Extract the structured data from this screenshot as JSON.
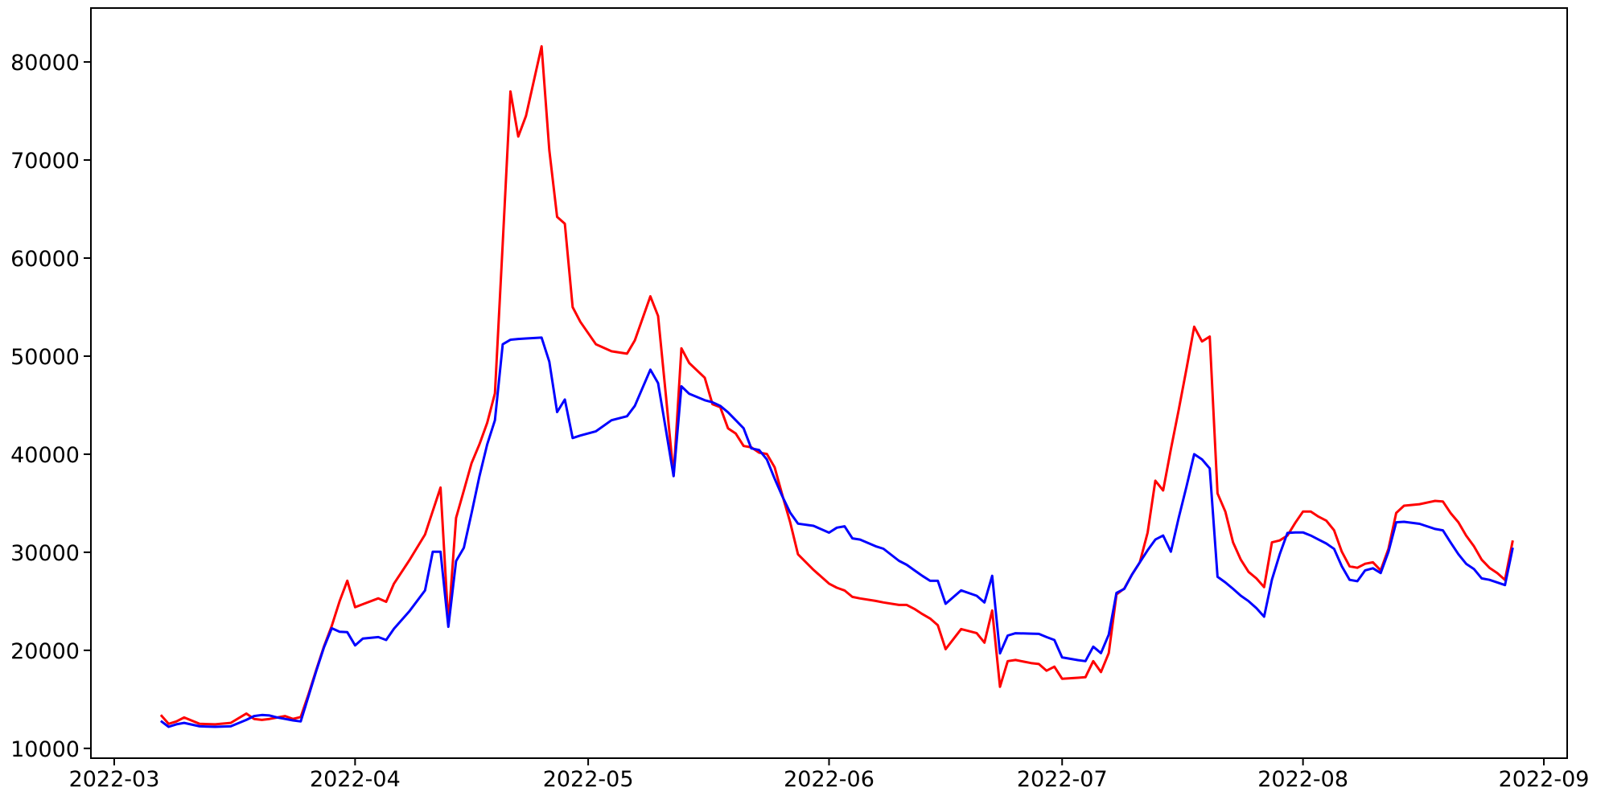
{
  "chart_data": {
    "type": "line",
    "title": "",
    "xlabel": "",
    "ylabel": "",
    "grid": false,
    "legend": null,
    "background_color": "#ffffff",
    "axis_color": "#000000",
    "xlim_days_from_2022_03_01": [
      -3,
      187
    ],
    "ylim": [
      9000,
      85500
    ],
    "x_ticks": [
      {
        "label": "2022-03",
        "date": "2022-03-01"
      },
      {
        "label": "2022-04",
        "date": "2022-04-01"
      },
      {
        "label": "2022-05",
        "date": "2022-05-01"
      },
      {
        "label": "2022-06",
        "date": "2022-06-01"
      },
      {
        "label": "2022-07",
        "date": "2022-07-01"
      },
      {
        "label": "2022-08",
        "date": "2022-08-01"
      },
      {
        "label": "2022-09",
        "date": "2022-09-01"
      }
    ],
    "y_ticks": [
      {
        "label": "10000",
        "value": 10000
      },
      {
        "label": "20000",
        "value": 20000
      },
      {
        "label": "30000",
        "value": 30000
      },
      {
        "label": "40000",
        "value": 40000
      },
      {
        "label": "50000",
        "value": 50000
      },
      {
        "label": "60000",
        "value": 60000
      },
      {
        "label": "70000",
        "value": 70000
      },
      {
        "label": "80000",
        "value": 80000
      }
    ],
    "x": [
      "2022-03-07",
      "2022-03-08",
      "2022-03-09",
      "2022-03-10",
      "2022-03-12",
      "2022-03-14",
      "2022-03-16",
      "2022-03-18",
      "2022-03-19",
      "2022-03-20",
      "2022-03-21",
      "2022-03-22",
      "2022-03-23",
      "2022-03-24",
      "2022-03-25",
      "2022-03-26",
      "2022-03-27",
      "2022-03-28",
      "2022-03-29",
      "2022-03-30",
      "2022-03-31",
      "2022-04-01",
      "2022-04-02",
      "2022-04-04",
      "2022-04-05",
      "2022-04-06",
      "2022-04-08",
      "2022-04-10",
      "2022-04-11",
      "2022-04-12",
      "2022-04-13",
      "2022-04-14",
      "2022-04-15",
      "2022-04-16",
      "2022-04-17",
      "2022-04-18",
      "2022-04-19",
      "2022-04-20",
      "2022-04-21",
      "2022-04-22",
      "2022-04-23",
      "2022-04-25",
      "2022-04-26",
      "2022-04-27",
      "2022-04-28",
      "2022-04-29",
      "2022-04-30",
      "2022-05-02",
      "2022-05-04",
      "2022-05-06",
      "2022-05-07",
      "2022-05-09",
      "2022-05-10",
      "2022-05-11",
      "2022-05-12",
      "2022-05-13",
      "2022-05-14",
      "2022-05-16",
      "2022-05-17",
      "2022-05-18",
      "2022-05-19",
      "2022-05-20",
      "2022-05-21",
      "2022-05-22",
      "2022-05-23",
      "2022-05-24",
      "2022-05-25",
      "2022-05-26",
      "2022-05-27",
      "2022-05-28",
      "2022-05-30",
      "2022-06-01",
      "2022-06-02",
      "2022-06-03",
      "2022-06-04",
      "2022-06-05",
      "2022-06-07",
      "2022-06-08",
      "2022-06-10",
      "2022-06-11",
      "2022-06-12",
      "2022-06-13",
      "2022-06-14",
      "2022-06-15",
      "2022-06-16",
      "2022-06-18",
      "2022-06-20",
      "2022-06-21",
      "2022-06-22",
      "2022-06-23",
      "2022-06-24",
      "2022-06-25",
      "2022-06-27",
      "2022-06-28",
      "2022-06-29",
      "2022-06-30",
      "2022-07-01",
      "2022-07-03",
      "2022-07-04",
      "2022-07-05",
      "2022-07-06",
      "2022-07-07",
      "2022-07-08",
      "2022-07-09",
      "2022-07-10",
      "2022-07-11",
      "2022-07-12",
      "2022-07-13",
      "2022-07-14",
      "2022-07-15",
      "2022-07-16",
      "2022-07-17",
      "2022-07-18",
      "2022-07-19",
      "2022-07-20",
      "2022-07-21",
      "2022-07-22",
      "2022-07-23",
      "2022-07-24",
      "2022-07-25",
      "2022-07-26",
      "2022-07-27",
      "2022-07-28",
      "2022-07-29",
      "2022-07-30",
      "2022-07-31",
      "2022-08-01",
      "2022-08-02",
      "2022-08-03",
      "2022-08-04",
      "2022-08-05",
      "2022-08-06",
      "2022-08-07",
      "2022-08-08",
      "2022-08-09",
      "2022-08-10",
      "2022-08-11",
      "2022-08-12",
      "2022-08-13",
      "2022-08-14",
      "2022-08-16",
      "2022-08-18",
      "2022-08-19",
      "2022-08-20",
      "2022-08-21",
      "2022-08-22",
      "2022-08-23",
      "2022-08-24",
      "2022-08-25",
      "2022-08-26",
      "2022-08-27",
      "2022-08-28"
    ],
    "series": [
      {
        "name": "red-series",
        "color": "#ff0000",
        "values": [
          13400,
          12500,
          12750,
          13150,
          12500,
          12450,
          12600,
          13550,
          13000,
          12900,
          13000,
          13150,
          13300,
          13000,
          13200,
          15500,
          18000,
          20400,
          22500,
          25000,
          27100,
          24400,
          24700,
          25300,
          24950,
          26800,
          29200,
          31800,
          34200,
          36600,
          22700,
          33500,
          36300,
          39100,
          41000,
          43200,
          46200,
          61500,
          77000,
          72400,
          74500,
          81600,
          71000,
          64200,
          63500,
          55000,
          53500,
          51200,
          50500,
          50250,
          51600,
          56100,
          54100,
          46000,
          37800,
          50800,
          49300,
          47800,
          45100,
          44790,
          42640,
          42100,
          40840,
          40700,
          40160,
          40030,
          38660,
          35790,
          33060,
          29790,
          28200,
          26800,
          26380,
          26100,
          25450,
          25290,
          25040,
          24880,
          24630,
          24630,
          24220,
          23700,
          23240,
          22560,
          20120,
          22170,
          21760,
          20780,
          24060,
          16280,
          18900,
          19010,
          18700,
          18600,
          17920,
          18330,
          17100,
          17200,
          17260,
          18900,
          17780,
          19720,
          25700,
          26300,
          27740,
          28970,
          32000,
          37300,
          36300,
          40500,
          44500,
          48700,
          53000,
          51500,
          52000,
          36000,
          34150,
          31010,
          29240,
          28000,
          27330,
          26450,
          31010,
          31200,
          31700,
          33000,
          34150,
          34150,
          33630,
          33220,
          32240,
          30060,
          28560,
          28420,
          28830,
          28970,
          28150,
          30360,
          34010,
          34750,
          34900,
          35240,
          35180,
          34000,
          33060,
          31700,
          30610,
          29240,
          28420,
          27880,
          27190,
          31200
        ]
      },
      {
        "name": "blue-series",
        "color": "#0000ff",
        "values": [
          12800,
          12200,
          12450,
          12600,
          12250,
          12200,
          12250,
          12900,
          13300,
          13400,
          13350,
          13150,
          13000,
          12850,
          12750,
          15300,
          17900,
          20300,
          22250,
          21900,
          21850,
          20500,
          21200,
          21350,
          21050,
          22200,
          24000,
          26100,
          30050,
          30050,
          22400,
          29100,
          30470,
          34000,
          37730,
          41000,
          43460,
          51210,
          51670,
          51750,
          51800,
          51890,
          49440,
          44300,
          45580,
          41650,
          41900,
          42340,
          43460,
          43870,
          44930,
          48620,
          47250,
          42500,
          37760,
          46920,
          46160,
          45500,
          45300,
          44930,
          44270,
          43460,
          42640,
          40590,
          40430,
          39470,
          37500,
          35680,
          34040,
          32920,
          32700,
          32000,
          32510,
          32650,
          31420,
          31290,
          30610,
          30360,
          29130,
          28720,
          28150,
          27600,
          27090,
          27090,
          24740,
          26110,
          25560,
          24880,
          27600,
          19690,
          21500,
          21740,
          21700,
          21680,
          21350,
          21050,
          19280,
          19000,
          18900,
          20370,
          19720,
          21600,
          25860,
          26270,
          27740,
          28970,
          30200,
          31290,
          31700,
          30060,
          33500,
          36700,
          40000,
          39470,
          38550,
          27500,
          26920,
          26270,
          25560,
          25010,
          24300,
          23430,
          27200,
          29790,
          31970,
          32020,
          32020,
          31700,
          31290,
          30890,
          30340,
          28560,
          27190,
          27050,
          28150,
          28370,
          27880,
          30060,
          33060,
          33110,
          32900,
          32380,
          32240,
          31000,
          29800,
          28830,
          28290,
          27330,
          27190,
          26920,
          26650,
          30470
        ]
      }
    ]
  }
}
